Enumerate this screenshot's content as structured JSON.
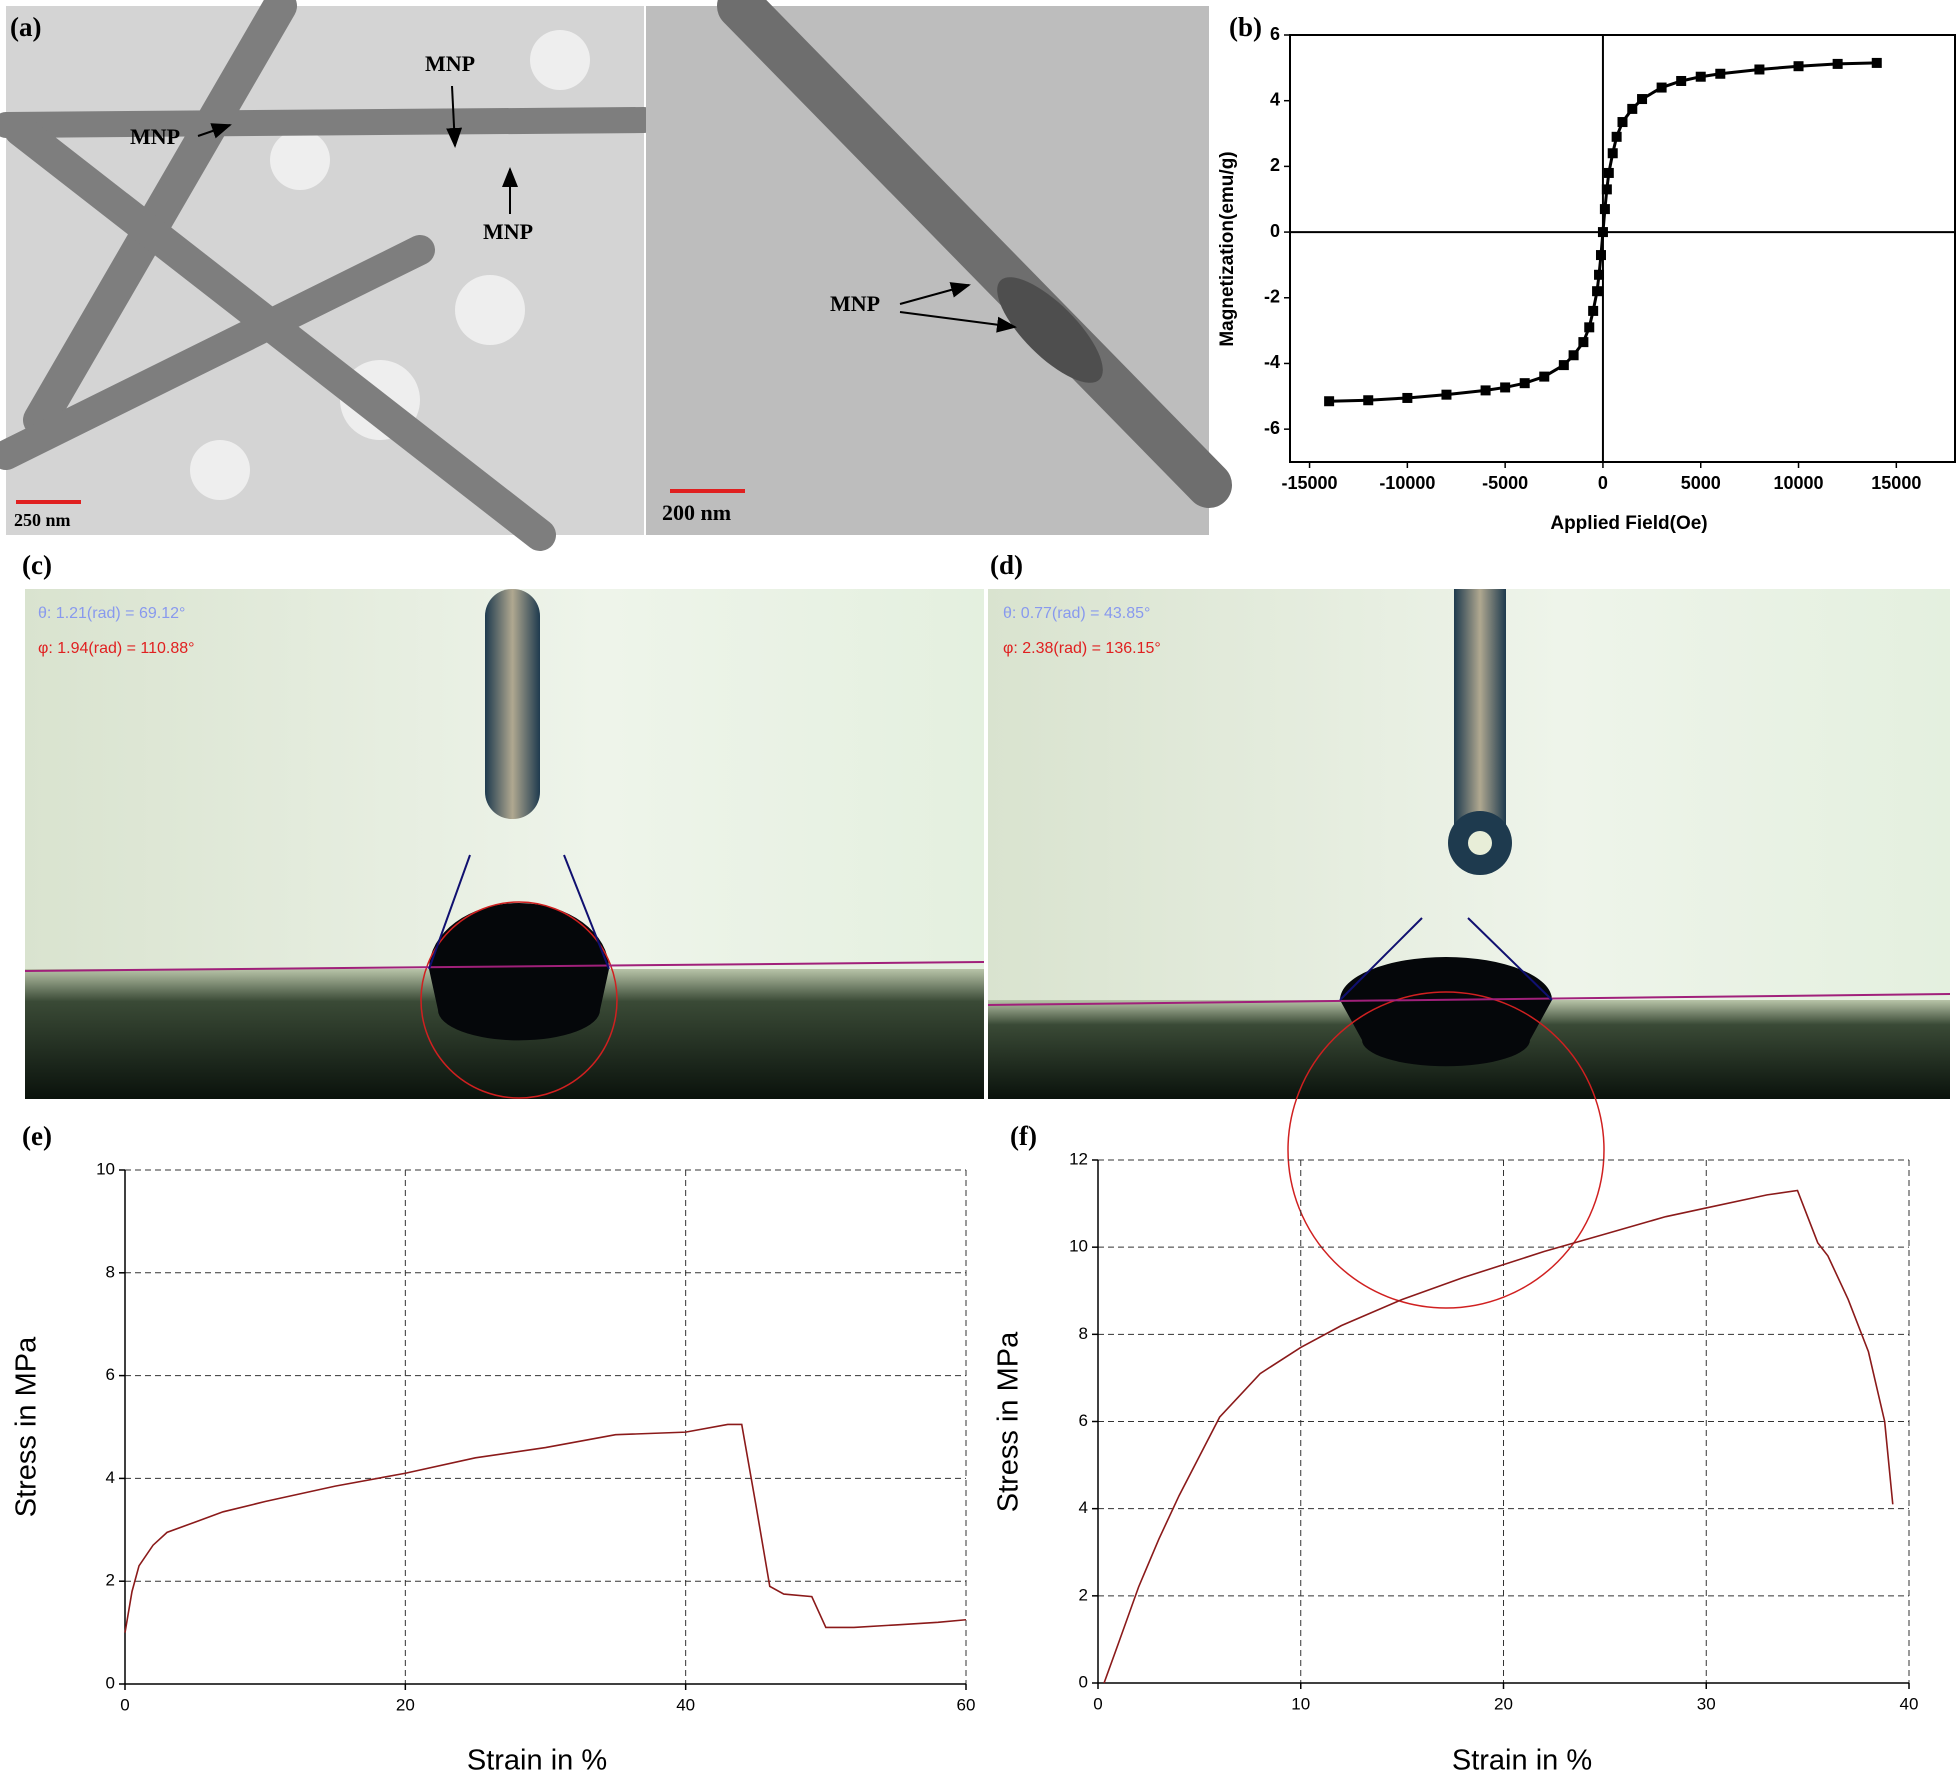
{
  "images": [
    {
      "label": "(a)",
      "annotations": [
        "MNP",
        "MNP",
        "MNP",
        "MNP"
      ],
      "scale_bars": [
        "250 nm",
        "200 nm"
      ]
    },
    {
      "label": "(c)",
      "angles": [
        "θ: 1.21(rad) = 69.12°",
        "φ: 1.94(rad) = 110.88°"
      ]
    },
    {
      "label": "(d)",
      "angles": [
        "θ: 0.77(rad) = 43.85°",
        "φ: 2.38(rad) = 136.15°"
      ]
    }
  ],
  "chart_data": [
    {
      "type": "line",
      "label": "(b)",
      "x_label": "Applied Field(Oe)",
      "y_label": "Magnetization(emu/g)",
      "x": [
        -14000,
        -12000,
        -10000,
        -8000,
        -6000,
        -5000,
        -4000,
        -3000,
        -2000,
        -1500,
        -1000,
        -700,
        -500,
        -300,
        -200,
        -100,
        0,
        100,
        200,
        300,
        500,
        700,
        1000,
        1500,
        2000,
        3000,
        4000,
        5000,
        6000,
        8000,
        10000,
        12000,
        14000
      ],
      "values": [
        -5.15,
        -5.12,
        -5.05,
        -4.95,
        -4.82,
        -4.73,
        -4.6,
        -4.4,
        -4.05,
        -3.75,
        -3.35,
        -2.9,
        -2.4,
        -1.8,
        -1.3,
        -0.7,
        0,
        0.7,
        1.3,
        1.8,
        2.4,
        2.9,
        3.35,
        3.75,
        4.05,
        4.4,
        4.6,
        4.73,
        4.82,
        4.95,
        5.05,
        5.12,
        5.15
      ],
      "color": "#000000",
      "markers": "square",
      "zero_lines": true,
      "grid": false,
      "xlim": [
        -16000,
        18000
      ],
      "xticks": [
        -15000,
        -10000,
        -5000,
        0,
        5000,
        10000,
        15000
      ],
      "ylim": [
        -7,
        6
      ],
      "yticks": [
        -6,
        -4,
        -2,
        0,
        2,
        4,
        6
      ]
    },
    {
      "type": "line",
      "label": "(e)",
      "x_label": "Strain in %",
      "y_label": "Stress in MPa",
      "x": [
        0,
        0.5,
        1,
        2,
        3,
        5,
        7,
        10,
        15,
        20,
        25,
        30,
        35,
        40,
        43,
        44,
        45,
        46,
        47,
        49,
        50,
        52,
        55,
        58,
        60
      ],
      "values": [
        1,
        1.8,
        2.3,
        2.7,
        2.95,
        3.15,
        3.35,
        3.55,
        3.85,
        4.1,
        4.4,
        4.6,
        4.85,
        4.9,
        5.05,
        5.05,
        3.5,
        1.9,
        1.75,
        1.7,
        1.1,
        1.1,
        1.15,
        1.2,
        1.25
      ],
      "color": "#8b1a1a",
      "grid": true,
      "xlim": [
        0,
        60
      ],
      "xticks": [
        0,
        20,
        40,
        60
      ],
      "ylim": [
        0,
        10
      ],
      "yticks": [
        0,
        2,
        4,
        6,
        8,
        10
      ]
    },
    {
      "type": "line",
      "label": "(f)",
      "x_label": "Strain in %",
      "y_label": "Stress in MPa",
      "x": [
        0.3,
        1,
        2,
        3,
        4,
        5,
        6,
        8,
        10,
        12,
        15,
        18,
        20,
        22,
        25,
        28,
        30,
        33,
        34.5,
        35,
        35.5,
        36,
        37,
        38,
        38.8,
        39.2
      ],
      "values": [
        0,
        0.9,
        2.2,
        3.3,
        4.3,
        5.2,
        6.1,
        7.1,
        7.7,
        8.2,
        8.8,
        9.3,
        9.6,
        9.9,
        10.3,
        10.7,
        10.9,
        11.2,
        11.3,
        10.7,
        10.1,
        9.8,
        8.8,
        7.6,
        6.0,
        4.1
      ],
      "color": "#8b1a1a",
      "grid": true,
      "xlim": [
        0,
        40
      ],
      "xticks": [
        0,
        10,
        20,
        30,
        40
      ],
      "ylim": [
        0,
        12
      ],
      "yticks": [
        0,
        2,
        4,
        6,
        8,
        10,
        12
      ]
    }
  ]
}
